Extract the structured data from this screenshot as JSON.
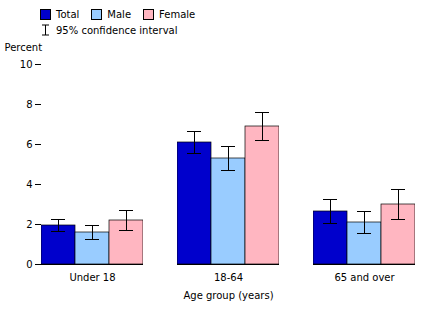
{
  "chart_data": {
    "type": "bar",
    "xlabel": "Age group (years)",
    "ylabel": "Percent",
    "categories": [
      "Under 18",
      "18-64",
      "65 and over"
    ],
    "series": [
      {
        "name": "Total",
        "color": "#0000CC",
        "values": [
          1.95,
          6.1,
          2.65
        ],
        "errors": [
          0.3,
          0.55,
          0.6
        ]
      },
      {
        "name": "Male",
        "color": "#99CCFF",
        "values": [
          1.6,
          5.3,
          2.1
        ],
        "errors": [
          0.35,
          0.6,
          0.55
        ]
      },
      {
        "name": "Female",
        "color": "#FFB6C1",
        "values": [
          2.2,
          6.9,
          3.0
        ],
        "errors": [
          0.5,
          0.7,
          0.75
        ]
      }
    ],
    "error_label": "95% confidence interval",
    "ylim": [
      0,
      10
    ],
    "yticks": [
      0,
      2,
      4,
      6,
      8,
      10
    ],
    "grid": false,
    "legend": "top"
  }
}
